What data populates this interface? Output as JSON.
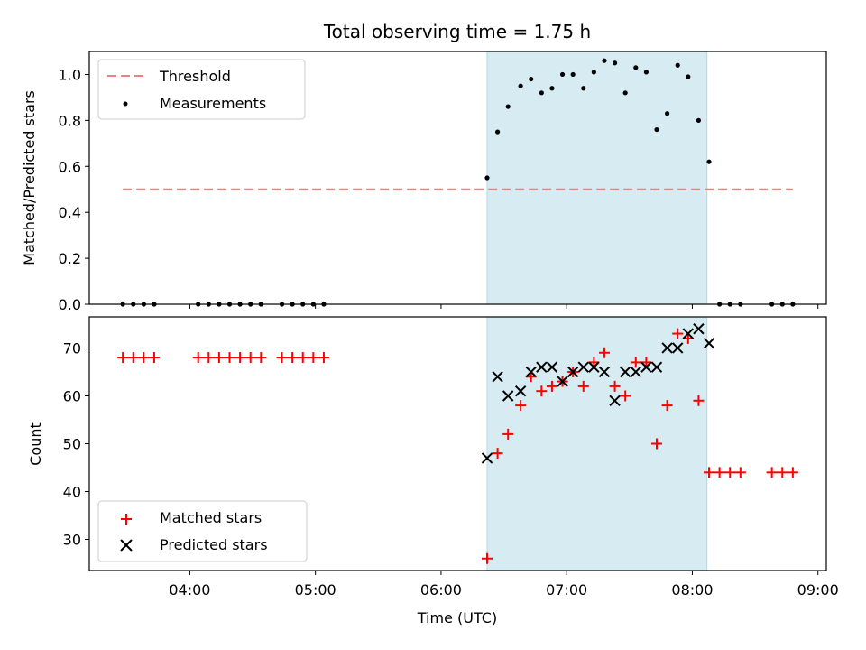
{
  "figure": {
    "title": "Total observing time = 1.75 h",
    "xlabel": "Time (UTC)",
    "x_ticks": [
      "04:00",
      "05:00",
      "06:00",
      "07:00",
      "08:00",
      "09:00"
    ],
    "colors": {
      "threshold": "#f08080",
      "measurements": "#000000",
      "matched": "#ff0000",
      "predicted": "#000000",
      "span": "#add8e6"
    }
  },
  "chart_data": [
    {
      "type": "scatter",
      "ylabel": "Matched/Predicted stars",
      "xlim": [
        "03:12",
        "09:04"
      ],
      "ylim": [
        0,
        1.1
      ],
      "y_ticks": [
        "0.0",
        "0.2",
        "0.4",
        "0.6",
        "0.8",
        "1.0"
      ],
      "highlight_span": [
        "06:22",
        "08:07"
      ],
      "legend_position": "top-left",
      "threshold": {
        "name": "Threshold",
        "y": 0.5,
        "x_range": [
          "03:28",
          "08:48"
        ]
      },
      "series": [
        {
          "name": "Measurements",
          "x": [
            "03:28",
            "03:33",
            "03:38",
            "03:43",
            "04:04",
            "04:09",
            "04:14",
            "04:19",
            "04:24",
            "04:29",
            "04:34",
            "04:44",
            "04:49",
            "04:54",
            "04:59",
            "05:04",
            "06:22",
            "06:27",
            "06:32",
            "06:38",
            "06:43",
            "06:48",
            "06:53",
            "06:58",
            "07:03",
            "07:08",
            "07:13",
            "07:18",
            "07:23",
            "07:28",
            "07:33",
            "07:38",
            "07:43",
            "07:48",
            "07:53",
            "07:58",
            "08:03",
            "08:08",
            "08:13",
            "08:18",
            "08:23",
            "08:38",
            "08:43",
            "08:48"
          ],
          "y": [
            0,
            0,
            0,
            0,
            0,
            0,
            0,
            0,
            0,
            0,
            0,
            0,
            0,
            0,
            0,
            0,
            0.55,
            0.75,
            0.86,
            0.95,
            0.98,
            0.92,
            0.94,
            1.0,
            1.0,
            0.94,
            1.01,
            1.06,
            1.05,
            0.92,
            1.03,
            1.01,
            0.76,
            0.83,
            1.04,
            0.99,
            0.8,
            0.62,
            0,
            0,
            0,
            0,
            0,
            0
          ]
        }
      ]
    },
    {
      "type": "scatter",
      "ylabel": "Count",
      "xlim": [
        "03:12",
        "09:04"
      ],
      "ylim": [
        23.5,
        76.5
      ],
      "y_ticks": [
        "30",
        "40",
        "50",
        "60",
        "70"
      ],
      "highlight_span": [
        "06:22",
        "08:07"
      ],
      "legend_position": "bottom-left",
      "series": [
        {
          "name": "Matched stars",
          "marker": "plus",
          "x": [
            "03:28",
            "03:33",
            "03:38",
            "03:43",
            "04:04",
            "04:09",
            "04:14",
            "04:19",
            "04:24",
            "04:29",
            "04:34",
            "04:44",
            "04:49",
            "04:54",
            "04:59",
            "05:04",
            "06:22",
            "06:27",
            "06:32",
            "06:38",
            "06:43",
            "06:48",
            "06:53",
            "06:58",
            "07:03",
            "07:08",
            "07:13",
            "07:18",
            "07:23",
            "07:28",
            "07:33",
            "07:38",
            "07:43",
            "07:48",
            "07:53",
            "07:58",
            "08:03",
            "08:08",
            "08:13",
            "08:18",
            "08:23",
            "08:38",
            "08:43",
            "08:48"
          ],
          "y": [
            68,
            68,
            68,
            68,
            68,
            68,
            68,
            68,
            68,
            68,
            68,
            68,
            68,
            68,
            68,
            68,
            26,
            48,
            52,
            58,
            64,
            61,
            62,
            63,
            65,
            62,
            67,
            69,
            62,
            60,
            67,
            67,
            50,
            58,
            73,
            72,
            59,
            44,
            44,
            44,
            44,
            44,
            44,
            44
          ]
        },
        {
          "name": "Predicted stars",
          "marker": "x",
          "x": [
            "06:22",
            "06:27",
            "06:32",
            "06:38",
            "06:43",
            "06:48",
            "06:53",
            "06:58",
            "07:03",
            "07:08",
            "07:13",
            "07:18",
            "07:23",
            "07:28",
            "07:33",
            "07:38",
            "07:43",
            "07:48",
            "07:53",
            "07:58",
            "08:03",
            "08:08"
          ],
          "y": [
            47,
            64,
            60,
            61,
            65,
            66,
            66,
            63,
            65,
            66,
            66,
            65,
            59,
            65,
            65,
            66,
            66,
            70,
            70,
            73,
            74,
            71
          ]
        }
      ]
    }
  ]
}
